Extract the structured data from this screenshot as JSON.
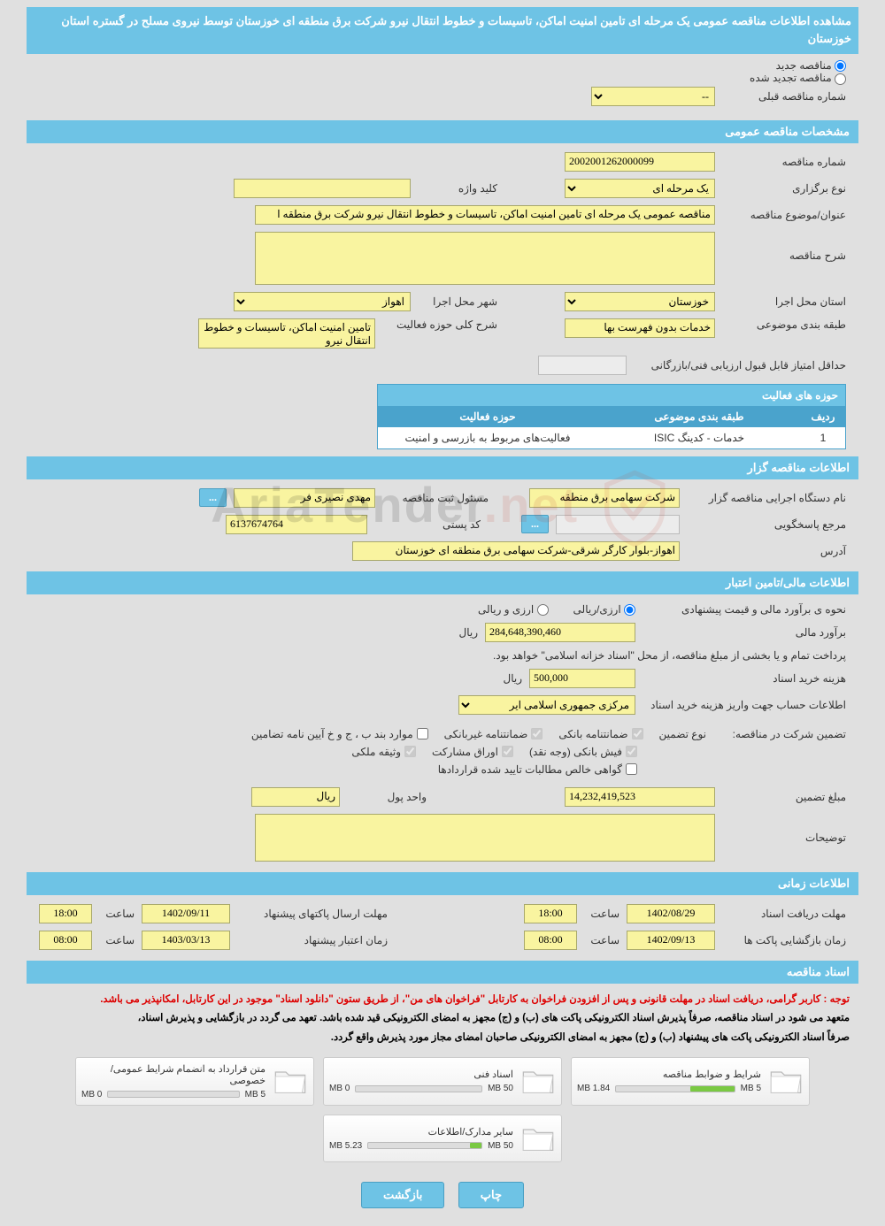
{
  "page_title": "مشاهده اطلاعات مناقصه عمومی یک مرحله ای تامین امنیت اماکن، تاسیسات و خطوط انتقال نیرو شرکت برق منطقه ای خوزستان توسط نیروی مسلح در گستره استان خوزستان",
  "radios": {
    "new": "مناقصه جدید",
    "renew": "مناقصه تجدید شده"
  },
  "prev_num_label": "شماره مناقصه قبلی",
  "prev_num_placeholder": "--",
  "sections": {
    "general": "مشخصات مناقصه عمومی",
    "holder": "اطلاعات مناقصه گزار",
    "finance": "اطلاعات مالی/تامین اعتبار",
    "time": "اطلاعات زمانی",
    "docs": "اسناد مناقصه"
  },
  "general": {
    "tender_no_lbl": "شماره مناقصه",
    "tender_no": "2002001262000099",
    "type_lbl": "نوع برگزاری",
    "type_val": "یک مرحله ای",
    "keyword_lbl": "کلید واژه",
    "keyword_val": "",
    "subject_lbl": "عنوان/موضوع مناقصه",
    "subject_val": "مناقصه عمومی یک مرحله ای تامین امنیت اماکن، تاسیسات و خطوط انتقال نیرو شرکت برق منطقه ا",
    "desc_lbl": "شرح مناقصه",
    "desc_val": "",
    "province_lbl": "استان محل اجرا",
    "province_val": "خوزستان",
    "city_lbl": "شهر محل اجرا",
    "city_val": "اهواز",
    "class_lbl": "طبقه بندی موضوعی",
    "class_val": "خدمات بدون فهرست بها",
    "scope_lbl": "شرح کلی حوزه فعالیت",
    "scope_val": "تامین امنیت اماکن، تاسیسات و خطوط انتقال نیرو",
    "min_score_lbl": "حداقل امتیاز قابل قبول ارزیابی فنی/بازرگانی",
    "min_score_val": "",
    "activity_title": "حوزه های فعالیت",
    "tbl": {
      "h_idx": "ردیف",
      "h_cat": "طبقه بندی موضوعی",
      "h_act": "حوزه فعالیت",
      "rows": [
        {
          "idx": "1",
          "cat": "خدمات - کدینگ ISIC",
          "act": "فعالیت‌های مربوط به بازرسی و امنیت"
        }
      ]
    }
  },
  "holder": {
    "org_lbl": "نام دستگاه اجرایی مناقصه گزار",
    "org_val": "شرکت سهامی برق منطقه",
    "resp_lbl": "مسئول ثبت مناقصه",
    "resp_val": "مهدی نصیری فر",
    "more_btn": "...",
    "ref_lbl": "مرجع پاسخگویی",
    "ref_val": "",
    "zip_lbl": "کد پستی",
    "zip_val": "6137674764",
    "addr_lbl": "آدرس",
    "addr_val": "اهواز-بلوار کارگر شرقی-شرکت سهامی برق منطقه ای خوزستان"
  },
  "finance": {
    "method_lbl": "نحوه ی برآورد مالی و قیمت پیشنهادی",
    "opt_rial": "ارزی/ریالی",
    "opt_fx": "ارزی و ریالی",
    "est_lbl": "برآورد مالی",
    "est_val": "284,648,390,460",
    "rial": "ریال",
    "treasury_note": "پرداخت تمام و یا بخشی از مبلغ مناقصه، از محل \"اسناد خزانه اسلامی\" خواهد بود.",
    "buy_lbl": "هزینه خرید اسناد",
    "buy_val": "500,000",
    "acct_lbl": "اطلاعات حساب جهت واریز هزینه خرید اسناد",
    "acct_val": "مرکزی جمهوری اسلامی ایر",
    "guarantee_lbl": "تضمین شرکت در مناقصه:",
    "gt_type_lbl": "نوع تضمین",
    "chk": {
      "bank_g": "ضمانتنامه بانکی",
      "nonbank_g": "ضمانتنامه غیربانکی",
      "bond": "موارد بند ب ، ج و خ آیین نامه تضامین",
      "cash": "فیش بانکی (وجه نقد)",
      "part": "اوراق مشارکت",
      "prop": "وثیقه ملکی",
      "cert": "گواهی خالص مطالبات تایید شده قراردادها"
    },
    "amount_lbl": "مبلغ تضمین",
    "amount_val": "14,232,419,523",
    "unit_lbl": "واحد پول",
    "unit_val": "ریال",
    "notes_lbl": "توضیحات",
    "notes_val": ""
  },
  "time": {
    "receive_lbl": "مهلت دریافت اسناد",
    "receive_date": "1402/08/29",
    "receive_time_lbl": "ساعت",
    "receive_time": "18:00",
    "submit_lbl": "مهلت ارسال پاکتهای پیشنهاد",
    "submit_date": "1402/09/11",
    "submit_time": "18:00",
    "open_lbl": "زمان بازگشایی پاکت ها",
    "open_date": "1402/09/13",
    "open_time": "08:00",
    "valid_lbl": "زمان اعتبار پیشنهاد",
    "valid_date": "1403/03/13",
    "valid_time": "08:00"
  },
  "docs": {
    "note_red": "توجه : کاربر گرامی، دریافت اسناد در مهلت قانونی و پس از افزودن فراخوان به کارتابل \"فراخوان های من\"، از طریق ستون \"دانلود اسناد\" موجود در این کارتابل، امکانپذیر می باشد.",
    "note_blk1": "متعهد می شود در اسناد مناقصه، صرفاً پذیرش اسناد الکترونیکی پاکت های (ب) و (ج) مجهز به امضای الکترونیکی قید شده باشد. تعهد می گردد در بازگشایی و پذیرش اسناد،",
    "note_blk2": "صرفاً اسناد الکترونیکی پاکت های پیشنهاد (ب) و (ج) مجهز به امضای الکترونیکی صاحبان امضای مجاز مورد پذیرش واقع گردد.",
    "items": [
      {
        "title": "شرایط و ضوابط مناقصه",
        "used": "1.84 MB",
        "cap": "5 MB",
        "pct": 37
      },
      {
        "title": "اسناد فنی",
        "used": "0 MB",
        "cap": "50 MB",
        "pct": 0
      },
      {
        "title": "متن قرارداد به انضمام شرایط عمومی/خصوصی",
        "used": "0 MB",
        "cap": "5 MB",
        "pct": 0
      },
      {
        "title": "سایر مدارک/اطلاعات",
        "used": "5.23 MB",
        "cap": "50 MB",
        "pct": 10
      }
    ]
  },
  "buttons": {
    "print": "چاپ",
    "back": "بازگشت"
  },
  "watermark": {
    "t1": "AriaTender",
    "t2": ".net"
  },
  "colors": {
    "header_bg": "#6ec3e5",
    "header_fg": "#ffffff",
    "field_bg": "#f9f4a0",
    "field_border": "#a8a86b",
    "page_bg": "#e0e0e0",
    "table_header": "#4aa3cc",
    "progress_fill": "#7ac943",
    "note_red": "#d00"
  }
}
